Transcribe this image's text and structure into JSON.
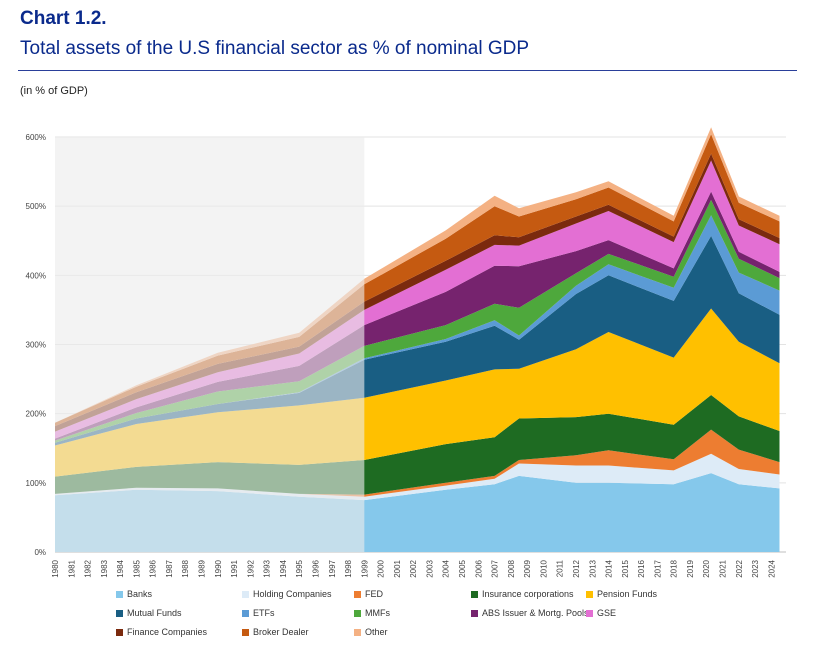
{
  "header": {
    "chart_number": "Chart 1.2.",
    "title": "Total assets of the U.S financial sector as % of nominal GDP",
    "unit_label": "(in % of GDP)"
  },
  "chart_data": {
    "type": "area",
    "stacked": true,
    "title": "Total assets of the U.S financial sector as % of nominal GDP",
    "xlabel": "",
    "ylabel": "(in % of GDP)",
    "ylim": [
      0,
      600
    ],
    "y_ticks": [
      "0%",
      "100%",
      "200%",
      "300%",
      "400%",
      "500%",
      "600%"
    ],
    "grid": true,
    "legend_position": "bottom",
    "shaded_period": {
      "start": 1980,
      "end": 1999,
      "note": "shaded (faded) region"
    },
    "x": [
      1980,
      1985,
      1990,
      1995,
      1999,
      2004,
      2007,
      2008.5,
      2012,
      2014,
      2018,
      2020.3,
      2022,
      2024.5
    ],
    "x_tick_labels": [
      "1980",
      "1981",
      "1982",
      "1983",
      "1984",
      "1985",
      "1986",
      "1987",
      "1988",
      "1989",
      "1990",
      "1991",
      "1992",
      "1993",
      "1994",
      "1995",
      "1996",
      "1997",
      "1998",
      "1999",
      "2000",
      "2001",
      "2002",
      "2003",
      "2004",
      "2005",
      "2006",
      "2007",
      "2008",
      "2009",
      "2010",
      "2011",
      "2012",
      "2013",
      "2014",
      "2015",
      "2016",
      "2017",
      "2018",
      "2019",
      "2020",
      "2021",
      "2022",
      "2023",
      "2024"
    ],
    "series": [
      {
        "name": "Banks",
        "color": "#85C8EB",
        "values": [
          82,
          90,
          88,
          80,
          75,
          90,
          98,
          110,
          100,
          100,
          98,
          114,
          98,
          92
        ]
      },
      {
        "name": "Holding Companies",
        "color": "#DDEBF7",
        "values": [
          2,
          3,
          4,
          4,
          5,
          6,
          8,
          18,
          25,
          25,
          20,
          28,
          22,
          20
        ]
      },
      {
        "name": "FED",
        "color": "#ED7D31",
        "values": [
          0,
          0,
          0,
          0,
          3,
          4,
          4,
          5,
          15,
          22,
          16,
          35,
          28,
          18
        ]
      },
      {
        "name": "Insurance corporations",
        "color": "#1E6B22",
        "values": [
          25,
          30,
          38,
          42,
          50,
          56,
          56,
          60,
          55,
          53,
          50,
          50,
          48,
          45
        ]
      },
      {
        "name": "Pension Funds",
        "color": "#FFC000",
        "values": [
          45,
          62,
          72,
          86,
          90,
          92,
          98,
          72,
          98,
          118,
          97,
          125,
          108,
          98
        ]
      },
      {
        "name": "Mutual Funds",
        "color": "#195E83",
        "values": [
          4,
          8,
          12,
          18,
          55,
          56,
          63,
          42,
          80,
          82,
          82,
          105,
          70,
          70
        ]
      },
      {
        "name": "ETFs",
        "color": "#5B9BD5",
        "values": [
          0,
          0,
          0,
          1,
          2,
          4,
          8,
          6,
          12,
          16,
          19,
          30,
          30,
          35
        ]
      },
      {
        "name": "MMFs",
        "color": "#4EA83C",
        "values": [
          3,
          8,
          18,
          16,
          18,
          20,
          24,
          40,
          18,
          15,
          16,
          22,
          20,
          18
        ]
      },
      {
        "name": "ABS Issuer & Mortg. Pools",
        "color": "#76236E",
        "values": [
          3,
          8,
          14,
          22,
          30,
          48,
          55,
          60,
          32,
          20,
          12,
          12,
          10,
          9
        ]
      },
      {
        "name": "GSE",
        "color": "#E36FD3",
        "values": [
          10,
          12,
          14,
          18,
          22,
          32,
          30,
          30,
          40,
          42,
          38,
          45,
          38,
          40
        ]
      },
      {
        "name": "Finance Companies",
        "color": "#7B2A0E",
        "values": [
          8,
          10,
          12,
          10,
          12,
          13,
          14,
          12,
          10,
          9,
          8,
          10,
          9,
          9
        ]
      },
      {
        "name": "Broker Dealer",
        "color": "#C55A11",
        "values": [
          5,
          8,
          12,
          14,
          25,
          32,
          42,
          30,
          25,
          25,
          22,
          28,
          24,
          24
        ]
      },
      {
        "name": "Other",
        "color": "#F4B183",
        "values": [
          0,
          2,
          4,
          6,
          8,
          12,
          15,
          12,
          10,
          9,
          8,
          10,
          9,
          8
        ]
      }
    ]
  }
}
